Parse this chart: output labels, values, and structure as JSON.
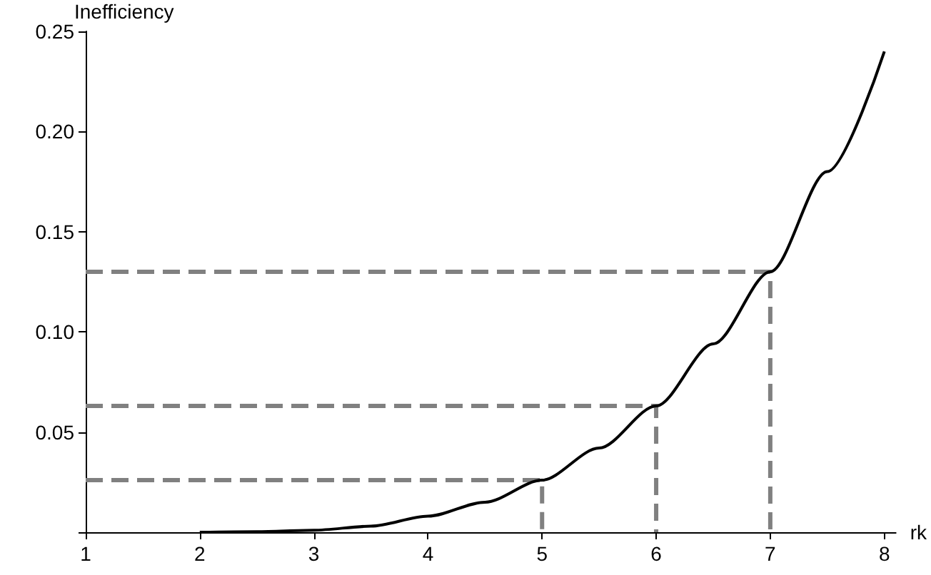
{
  "chart_data": {
    "type": "line",
    "xlabel": "rk",
    "ylabel": "Inefficiency",
    "xlim": [
      1,
      8.1
    ],
    "ylim": [
      0,
      0.25
    ],
    "xticks": [
      1,
      2,
      3,
      4,
      5,
      6,
      7,
      8
    ],
    "yticks": [
      {
        "value": 0,
        "label": null
      },
      0.05,
      {
        "value": 0.1,
        "label": "0.10"
      },
      0.15,
      {
        "value": 0.2,
        "label": "0.20"
      },
      0.25
    ],
    "grid": false,
    "marker": "none",
    "series": [
      {
        "color": "#000000",
        "line_style": "solid",
        "x": [
          2,
          2.5,
          3,
          3.5,
          4,
          4.5,
          5,
          5.5,
          6,
          6.5,
          7,
          7.5,
          8
        ],
        "values": [
          0,
          0.0003,
          0.001,
          0.003,
          0.008,
          0.015,
          0.026,
          0.042,
          0.063,
          0.094,
          0.13,
          0.18,
          0.24
        ]
      },
      {
        "color": "#808080",
        "line_style": "dashed",
        "x": [
          1,
          5,
          5
        ],
        "values": [
          0.026,
          0.026,
          0
        ]
      },
      {
        "color": "#808080",
        "line_style": "dashed",
        "x": [
          1,
          6,
          6
        ],
        "values": [
          0.063,
          0.063,
          0
        ]
      },
      {
        "color": "#808080",
        "line_style": "dashed",
        "x": [
          1,
          7,
          7
        ],
        "values": [
          0.13,
          0.13,
          0
        ]
      }
    ]
  }
}
